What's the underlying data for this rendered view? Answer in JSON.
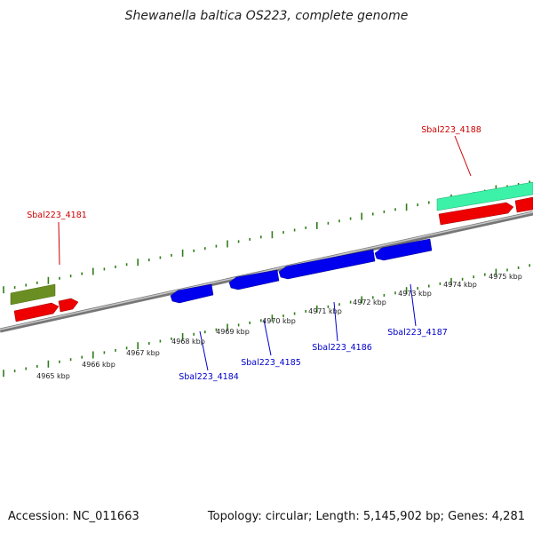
{
  "title": "Shewanella baltica OS223, complete genome",
  "footer": {
    "accession": "Accession: NC_011663",
    "summary": "Topology: circular; Length: 5,145,902 bp; Genes: 4,281"
  },
  "colors": {
    "top_genes": "#0000cc",
    "bottom_genes": "#cc0000",
    "backbone": "#8a8a8a",
    "ticks": "#2f7d1a",
    "cds_forward": "#ee0000",
    "cds_reverse": "#0000ee",
    "gene_green": "#6b8e23",
    "gene_mint": "#3cf2a8"
  },
  "scale": {
    "labels": [
      "4965 kbp",
      "4966 kbp",
      "4967 kbp",
      "4968 kbp",
      "4969 kbp",
      "4970 kbp",
      "4971 kbp",
      "4972 kbp",
      "4973 kbp",
      "4974 kbp",
      "4975 kbp"
    ]
  },
  "gene_labels_top": [
    {
      "name": "Sbal223_4181"
    },
    {
      "name": "Sbal223_4188"
    }
  ],
  "gene_labels_bottom": [
    {
      "name": "Sbal223_4184"
    },
    {
      "name": "Sbal223_4185"
    },
    {
      "name": "Sbal223_4186"
    },
    {
      "name": "Sbal223_4187"
    }
  ]
}
